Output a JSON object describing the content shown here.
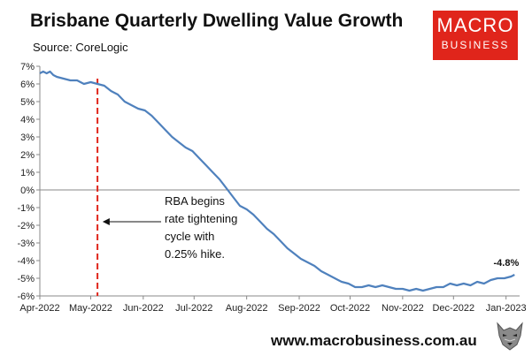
{
  "header": {
    "title": "Brisbane Quarterly Dwelling Value Growth",
    "source": "Source: CoreLogic"
  },
  "logo": {
    "line1": "MACRO",
    "line2": "BUSINESS"
  },
  "footer": {
    "website": "www.macrobusiness.com.au"
  },
  "chart_data": {
    "type": "line",
    "title": "Brisbane Quarterly Dwelling Value Growth",
    "xlabel": "",
    "ylabel": "",
    "ylim": [
      -6,
      7
    ],
    "y_ticks": [
      7,
      6,
      5,
      4,
      3,
      2,
      1,
      0,
      -1,
      -2,
      -3,
      -4,
      -5,
      -6
    ],
    "y_tick_labels": [
      "7%",
      "6%",
      "5%",
      "4%",
      "3%",
      "2%",
      "1%",
      "0%",
      "-1%",
      "-2%",
      "-3%",
      "-4%",
      "-5%",
      "-6%"
    ],
    "x_range_days": [
      0,
      283
    ],
    "x_tick_days": [
      0,
      30,
      61,
      91,
      122,
      153,
      183,
      214,
      244,
      275
    ],
    "x_tick_labels": [
      "Apr-2022",
      "May-2022",
      "Jun-2022",
      "Jul-2022",
      "Aug-2022",
      "Sep-2022",
      "Oct-2022",
      "Nov-2022",
      "Dec-2022",
      "Jan-2023"
    ],
    "series": [
      {
        "name": "Brisbane quarterly dwelling value growth (%)",
        "color": "#4f81bd",
        "x_days": [
          0,
          2,
          4,
          6,
          8,
          10,
          14,
          18,
          22,
          26,
          30,
          34,
          38,
          42,
          46,
          50,
          54,
          58,
          62,
          66,
          70,
          74,
          78,
          82,
          86,
          90,
          94,
          98,
          102,
          106,
          110,
          114,
          118,
          122,
          126,
          130,
          134,
          138,
          142,
          146,
          150,
          154,
          158,
          162,
          166,
          170,
          174,
          178,
          182,
          186,
          190,
          194,
          198,
          202,
          206,
          210,
          214,
          218,
          222,
          226,
          230,
          234,
          238,
          242,
          246,
          250,
          254,
          258,
          262,
          266,
          270,
          274,
          278,
          280
        ],
        "values": [
          6.6,
          6.7,
          6.6,
          6.7,
          6.5,
          6.4,
          6.3,
          6.2,
          6.2,
          6.0,
          6.1,
          6.0,
          5.9,
          5.6,
          5.4,
          5.0,
          4.8,
          4.6,
          4.5,
          4.2,
          3.8,
          3.4,
          3.0,
          2.7,
          2.4,
          2.2,
          1.8,
          1.4,
          1.0,
          0.6,
          0.1,
          -0.4,
          -0.9,
          -1.1,
          -1.4,
          -1.8,
          -2.2,
          -2.5,
          -2.9,
          -3.3,
          -3.6,
          -3.9,
          -4.1,
          -4.3,
          -4.6,
          -4.8,
          -5.0,
          -5.2,
          -5.3,
          -5.5,
          -5.5,
          -5.4,
          -5.5,
          -5.4,
          -5.5,
          -5.6,
          -5.6,
          -5.7,
          -5.6,
          -5.7,
          -5.6,
          -5.5,
          -5.5,
          -5.3,
          -5.4,
          -5.3,
          -5.4,
          -5.2,
          -5.3,
          -5.1,
          -5.0,
          -5.0,
          -4.9,
          -4.8
        ]
      }
    ],
    "end_label": "-4.8%",
    "reference_line": {
      "x_day": 34,
      "color": "#e0251b",
      "style": "dashed"
    },
    "annotation": {
      "lines": [
        "RBA begins",
        "rate tightening",
        "cycle with",
        "0.25% hike."
      ],
      "arrow_to_day": 37,
      "arrow_value": -1.8
    }
  }
}
